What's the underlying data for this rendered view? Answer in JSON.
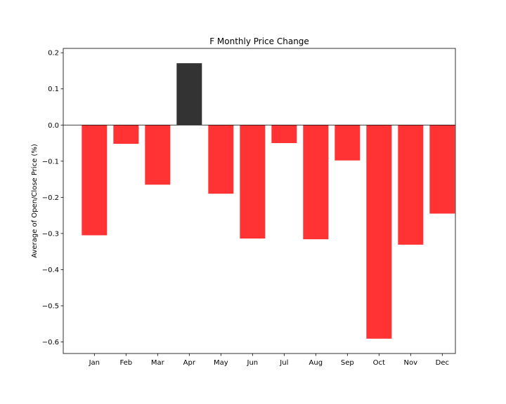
{
  "chart_data": {
    "type": "bar",
    "title": "F Monthly Price Change",
    "xlabel": "",
    "ylabel": "Average of Open/Close Price (%)",
    "categories": [
      "Jan",
      "Feb",
      "Mar",
      "Apr",
      "May",
      "Jun",
      "Jul",
      "Aug",
      "Sep",
      "Oct",
      "Nov",
      "Dec"
    ],
    "values": [
      -0.305,
      -0.052,
      -0.165,
      0.171,
      -0.19,
      -0.314,
      -0.05,
      -0.316,
      -0.098,
      -0.591,
      -0.331,
      -0.245
    ],
    "ylim": [
      -0.632,
      0.212
    ],
    "yticks": [
      0.2,
      0.1,
      0.0,
      -0.1,
      -0.2,
      -0.3,
      -0.4,
      -0.5,
      -0.6
    ],
    "ytick_labels": [
      "0.2",
      "0.1",
      "0.0",
      "−0.1",
      "−0.2",
      "−0.3",
      "−0.4",
      "−0.5",
      "−0.6"
    ],
    "colors": {
      "positive": "#333333",
      "negative": "#ff3333"
    },
    "zero_line": true,
    "grid": false,
    "legend": "none"
  }
}
